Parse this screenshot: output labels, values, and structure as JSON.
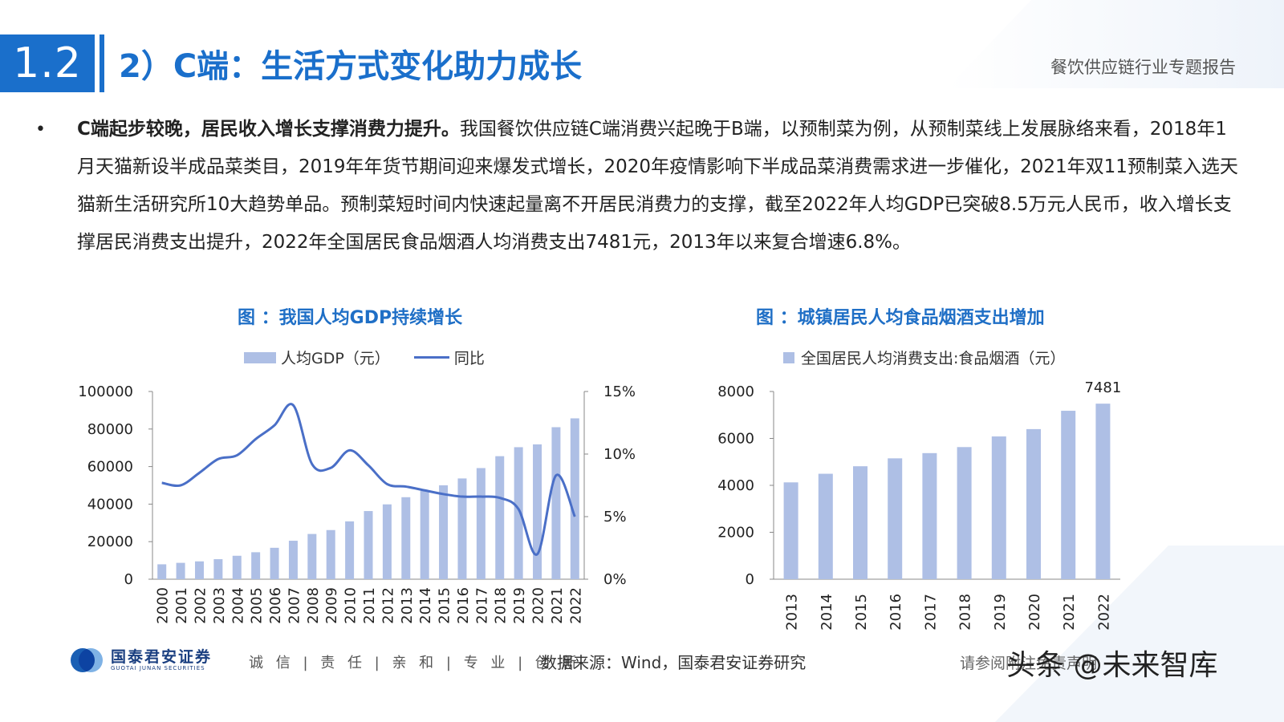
{
  "header": {
    "section_number": "1.2",
    "title": "2）C端：生活方式变化助力成长",
    "report_name": "餐饮供应链行业专题报告"
  },
  "body": {
    "bullet": "•",
    "lead": "C端起步较晚，居民收入增长支撑消费力提升。",
    "text": "我国餐饮供应链C端消费兴起晚于B端，以预制菜为例，从预制菜线上发展脉络来看，2018年1月天猫新设半成品菜类目，2019年年货节期间迎来爆发式增长，2020年疫情影响下半成品菜消费需求进一步催化，2021年双11预制菜入选天猫新生活研究所10大趋势单品。预制菜短时间内快速起量离不开居民消费力的支撑，截至2022年人均GDP已突破8.5万元人民币，收入增长支撑居民消费支出提升，2022年全国居民食品烟酒人均消费支出7481元，2013年以来复合增速6.8%。"
  },
  "chart_data": [
    {
      "type": "bar",
      "title": "图 ：我国人均GDP持续增长",
      "categories": [
        "2000",
        "2001",
        "2002",
        "2003",
        "2004",
        "2005",
        "2006",
        "2007",
        "2008",
        "2009",
        "2010",
        "2011",
        "2012",
        "2013",
        "2014",
        "2015",
        "2016",
        "2017",
        "2018",
        "2019",
        "2020",
        "2021",
        "2022"
      ],
      "series": [
        {
          "name": "人均GDP（元）",
          "type": "bar",
          "axis": "left",
          "values": [
            7942,
            8717,
            9506,
            10666,
            12487,
            14368,
            16738,
            20494,
            24100,
            26180,
            30808,
            36302,
            39874,
            43684,
            47005,
            50028,
            53680,
            59201,
            65534,
            70328,
            71828,
            80976,
            85698
          ]
        },
        {
          "name": "同比",
          "type": "line",
          "axis": "right",
          "color": "#4a6fc7",
          "values": [
            7.7,
            7.5,
            8.5,
            9.6,
            9.9,
            11.2,
            12.3,
            13.9,
            9.2,
            8.9,
            10.3,
            9.1,
            7.6,
            7.4,
            7.1,
            6.8,
            6.6,
            6.6,
            6.5,
            5.6,
            2.0,
            8.3,
            5.0
          ]
        }
      ],
      "y_left": {
        "ticks": [
          "0",
          "20000",
          "40000",
          "60000",
          "80000",
          "100000"
        ],
        "range": [
          0,
          100000
        ]
      },
      "y_right": {
        "ticks": [
          "0%",
          "5%",
          "10%",
          "15%"
        ],
        "range": [
          0,
          15
        ]
      },
      "bar_color": "#aebfe5",
      "legend_position": "top"
    },
    {
      "type": "bar",
      "title": "图 ：城镇居民人均食品烟酒支出增加",
      "categories": [
        "2013",
        "2014",
        "2015",
        "2016",
        "2017",
        "2018",
        "2019",
        "2020",
        "2021",
        "2022"
      ],
      "series": [
        {
          "name": "全国居民人均消费支出:食品烟酒（元）",
          "values": [
            4127,
            4494,
            4814,
            5151,
            5374,
            5631,
            6084,
            6397,
            7178,
            7481
          ]
        }
      ],
      "y_left": {
        "ticks": [
          "0",
          "2000",
          "4000",
          "6000",
          "8000"
        ],
        "range": [
          0,
          8000
        ]
      },
      "data_labels": {
        "last": "7481"
      },
      "bar_color": "#aebfe5",
      "legend_position": "top"
    }
  ],
  "footer": {
    "logo_cn": "国泰君安证券",
    "logo_en": "GUOTAI JUNAN SECURITIES",
    "motto": "诚 信 | 责 任 | 亲 和 | 专 业 | 创 新",
    "source": "数据来源：Wind，国泰君安证券研究",
    "disclaimer": "请参阅附注免责声明",
    "watermark": "头条 @未来智库"
  }
}
